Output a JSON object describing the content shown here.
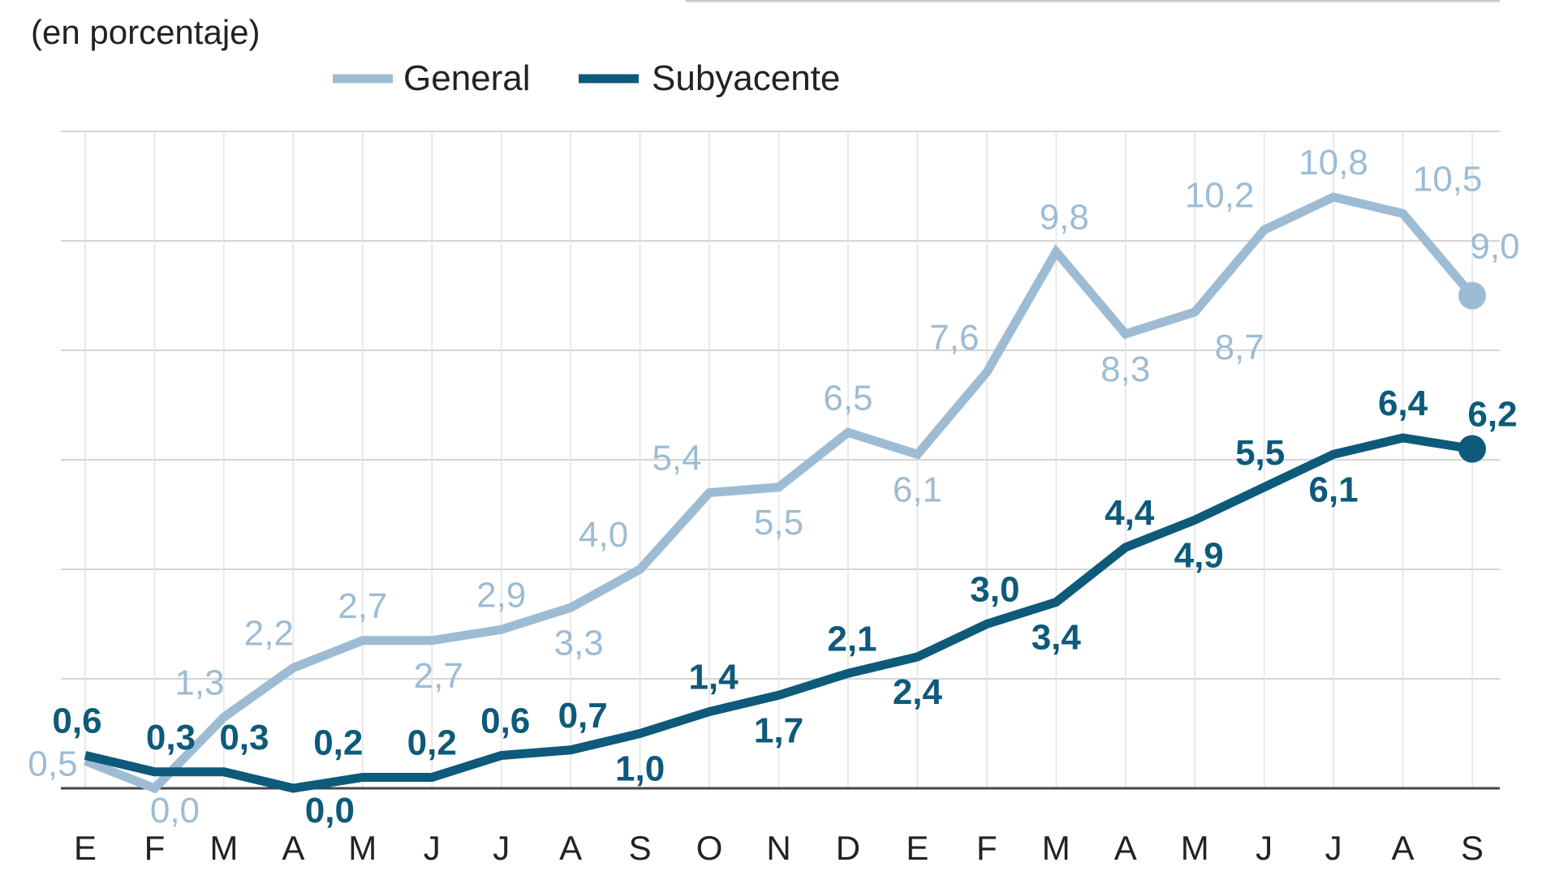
{
  "chart_data": {
    "type": "line",
    "subtitle": "(en porcentaje)",
    "categories": [
      "E",
      "F",
      "M",
      "A",
      "M",
      "J",
      "J",
      "A",
      "S",
      "O",
      "N",
      "D",
      "E",
      "F",
      "M",
      "A",
      "M",
      "J",
      "J",
      "A",
      "S"
    ],
    "ylim": [
      0,
      12
    ],
    "grid": true,
    "legend": "top-left",
    "series": [
      {
        "name": "General",
        "color": "#9dbcd4",
        "values": [
          0.5,
          0.0,
          1.3,
          2.2,
          2.7,
          2.7,
          2.9,
          3.3,
          4.0,
          5.4,
          5.5,
          6.5,
          6.1,
          7.6,
          9.8,
          8.3,
          8.7,
          10.2,
          10.8,
          10.5,
          9.0
        ],
        "labels": [
          "0,5",
          "0,0",
          "1,3",
          "2,2",
          "2,7",
          "2,7",
          "2,9",
          "3,3",
          "4,0",
          "5,4",
          "5,5",
          "6,5",
          "6,1",
          "7,6",
          "9,8",
          "8,3",
          "8,7",
          "10,2",
          "10,8",
          "10,5",
          "9,0"
        ]
      },
      {
        "name": "Subyacente",
        "color": "#0d5a7a",
        "values": [
          0.6,
          0.3,
          0.3,
          0.0,
          0.2,
          0.2,
          0.6,
          0.7,
          1.0,
          1.4,
          1.7,
          2.1,
          2.4,
          3.0,
          3.4,
          4.4,
          4.9,
          5.5,
          6.1,
          6.4,
          6.2
        ],
        "labels": [
          "0,6",
          "0,3",
          "0,3",
          "0,0",
          "0,2",
          "0,2",
          "0,6",
          "0,7",
          "1,0",
          "1,4",
          "1,7",
          "2,1",
          "2,4",
          "3,0",
          "3,4",
          "4,4",
          "4,9",
          "5,5",
          "6,1",
          "6,4",
          "6,2"
        ]
      }
    ]
  }
}
